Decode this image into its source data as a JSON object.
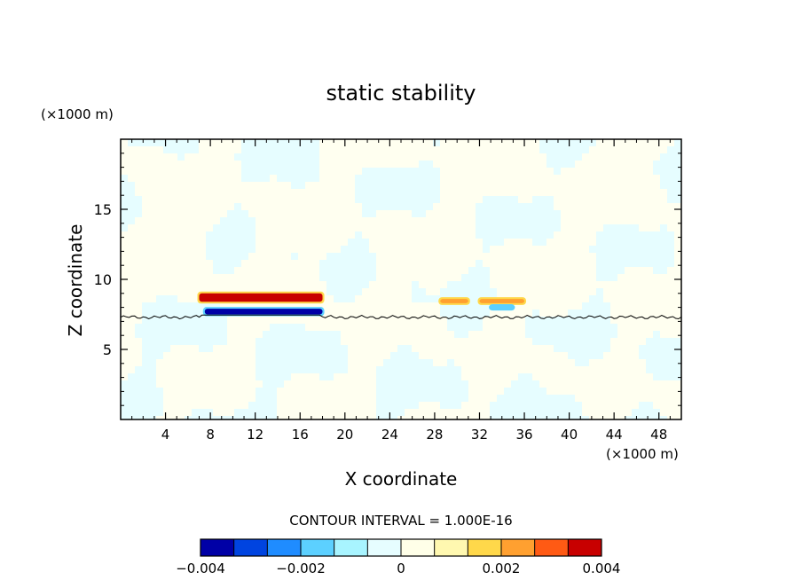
{
  "chart_data": {
    "type": "heatmap",
    "title": "static stability",
    "xlabel": "X coordinate",
    "ylabel": "Z coordinate",
    "x_unit": "(×1000 m)",
    "y_unit": "(×1000 m)",
    "xlim": [
      0,
      50
    ],
    "ylim": [
      0,
      20
    ],
    "x_ticks": [
      4,
      8,
      12,
      16,
      20,
      24,
      28,
      32,
      36,
      40,
      44,
      48
    ],
    "y_ticks": [
      5,
      10,
      15
    ],
    "contour_interval_label": "CONTOUR INTERVAL = 1.000E-16",
    "contour_line_level_z": 7.3,
    "colorbar": {
      "min": -0.004,
      "max": 0.004,
      "tick_values": [
        -0.004,
        -0.002,
        0,
        0.002,
        0.004
      ],
      "tick_labels": [
        "−0.004",
        "−0.002",
        "0",
        "0.002",
        "0.004"
      ],
      "colors": [
        "#0000a6",
        "#0044e0",
        "#1f8cff",
        "#5cd0ff",
        "#a8f4ff",
        "#e6fdff",
        "#ffffe8",
        "#fff8b0",
        "#ffd84a",
        "#ffa030",
        "#ff5a14",
        "#c80000"
      ]
    },
    "features": [
      {
        "name": "positive band",
        "x": [
          7,
          18
        ],
        "z": [
          8.4,
          9.0
        ],
        "value": 0.004
      },
      {
        "name": "negative band",
        "x": [
          7.5,
          18
        ],
        "z": [
          7.5,
          7.9
        ],
        "value": -0.0035
      },
      {
        "name": "positive band",
        "x": [
          28.5,
          31
        ],
        "z": [
          8.3,
          8.6
        ],
        "value": 0.002
      },
      {
        "name": "positive band",
        "x": [
          32,
          36
        ],
        "z": [
          8.3,
          8.6
        ],
        "value": 0.002
      },
      {
        "name": "negative band",
        "x": [
          33,
          35
        ],
        "z": [
          7.9,
          8.1
        ],
        "value": -0.002
      }
    ]
  }
}
